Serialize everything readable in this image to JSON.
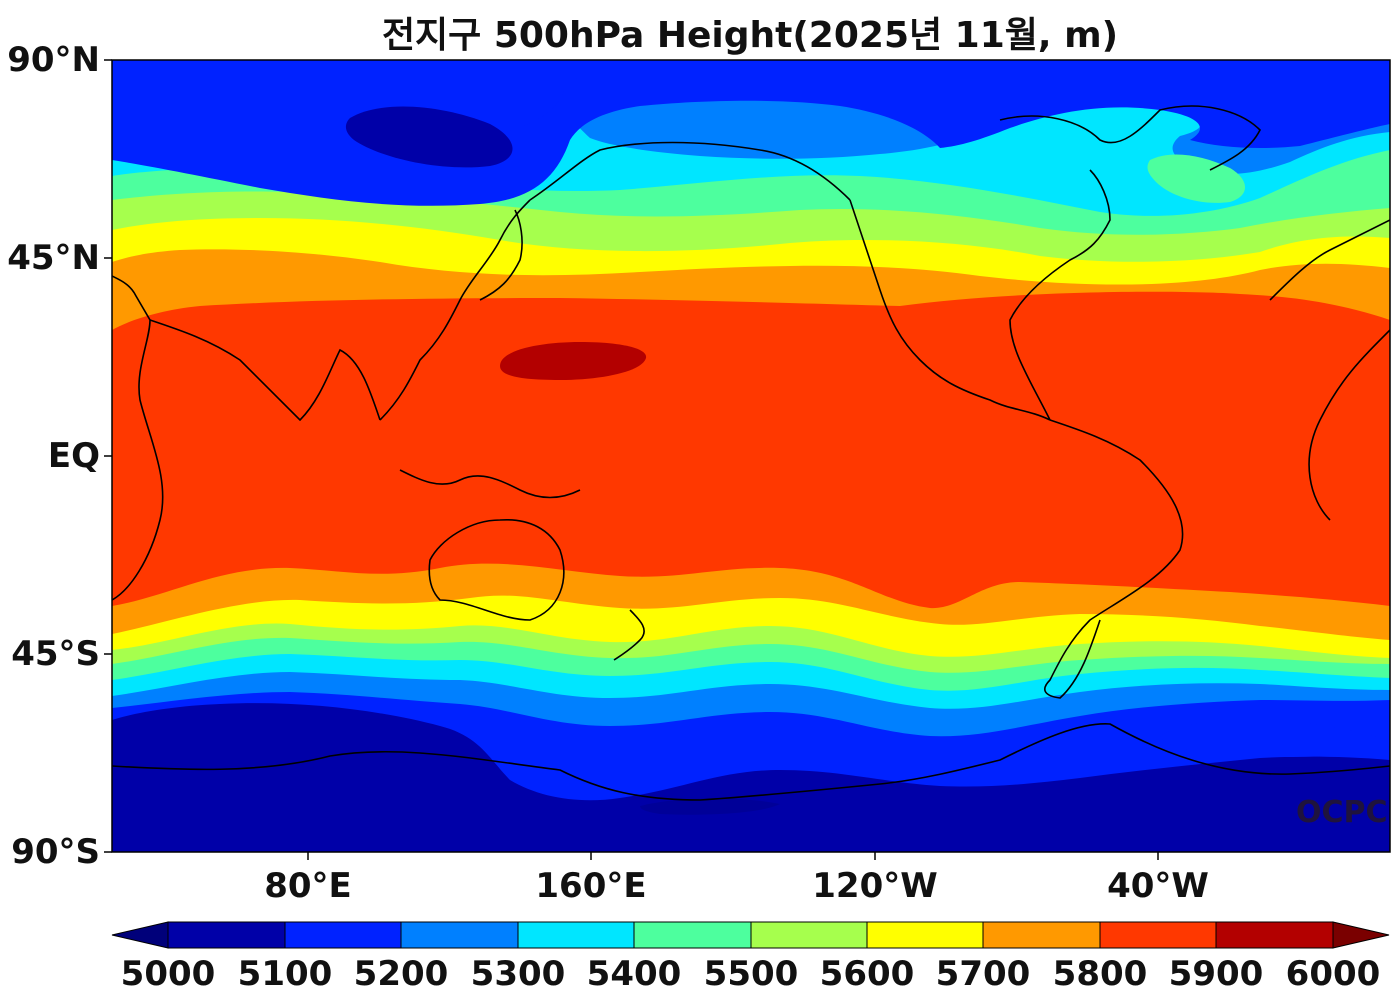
{
  "map": {
    "title": "전지구 500hPa Height(2025년 11월, m)",
    "watermark": "OCPC",
    "lat_labels": [
      "90°N",
      "45°N",
      "EQ",
      "45°S",
      "90°S"
    ],
    "lon_labels": [
      "80°E",
      "160°E",
      "120°W",
      "40°W"
    ],
    "colorbar": {
      "labels": [
        "5000",
        "5100",
        "5200",
        "5300",
        "5400",
        "5500",
        "5600",
        "5700",
        "5800",
        "5900",
        "6000"
      ],
      "colors": [
        "#0000a8",
        "#0022ff",
        "#0080ff",
        "#00e6ff",
        "#4dff9e",
        "#a6ff4d",
        "#ffff00",
        "#ff9900",
        "#ff3800",
        "#b30000"
      ],
      "under_color": "#00007a",
      "over_color": "#7a0000"
    },
    "contour_colors": {
      "c5050": "#0000a8",
      "c5150": "#0022ff",
      "c5250": "#0080ff",
      "c5350": "#00e6ff",
      "c5450": "#4dff9e",
      "c5550": "#a6ff4d",
      "c5650": "#ffff00",
      "c5750": "#ff9900",
      "c5850": "#ff3800",
      "c5950": "#b30000"
    }
  }
}
